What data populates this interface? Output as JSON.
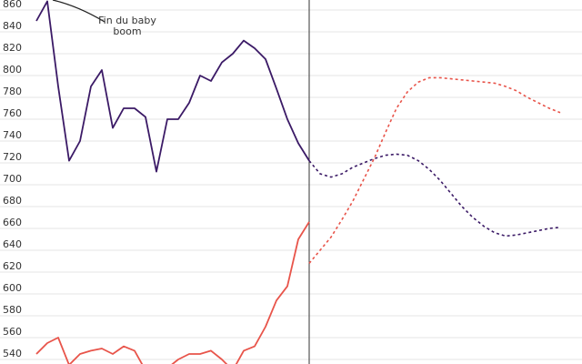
{
  "chart_data": {
    "type": "line",
    "annotation": [
      "Fin du baby",
      "boom"
    ],
    "categories": [
      null,
      null,
      null,
      null,
      null,
      null,
      null,
      null,
      null,
      null,
      null,
      null,
      null,
      null,
      null,
      null,
      null,
      null,
      null,
      null,
      null,
      null,
      null,
      null,
      null,
      null,
      null,
      null,
      null,
      null,
      null,
      null,
      null,
      null,
      null,
      null,
      null,
      null,
      null,
      null,
      null,
      null,
      null,
      null,
      null,
      null,
      null,
      null,
      null
    ],
    "series": [
      {
        "color": "#3b1a66",
        "dashed": false,
        "values": [
          850,
          868,
          790,
          722,
          740,
          790,
          805,
          752,
          770,
          770,
          762,
          712,
          760,
          760,
          775,
          800,
          795,
          812,
          820,
          832,
          825,
          815,
          788,
          760,
          738,
          722,
          null,
          null,
          null,
          null,
          null,
          null,
          null,
          null,
          null,
          null,
          null,
          null,
          null,
          null,
          null,
          null,
          null,
          null,
          null,
          null,
          null,
          null,
          null
        ]
      },
      {
        "color": "#3b1a66",
        "dashed": true,
        "values": [
          null,
          null,
          null,
          null,
          null,
          null,
          null,
          null,
          null,
          null,
          null,
          null,
          null,
          null,
          null,
          null,
          null,
          null,
          null,
          null,
          null,
          null,
          null,
          null,
          null,
          722,
          710,
          707,
          710,
          716,
          720,
          724,
          727,
          728,
          727,
          722,
          714,
          704,
          692,
          680,
          670,
          662,
          656,
          653,
          654,
          656,
          658,
          660,
          661
        ]
      },
      {
        "color": "#e8544a",
        "dashed": false,
        "values": [
          545,
          555,
          560,
          535,
          545,
          548,
          550,
          545,
          552,
          548,
          530,
          528,
          532,
          540,
          545,
          545,
          548,
          540,
          530,
          548,
          552,
          570,
          594,
          607,
          650,
          666,
          null,
          null,
          null,
          null,
          null,
          null,
          null,
          null,
          null,
          null,
          null,
          null,
          null,
          null,
          null,
          null,
          null,
          null,
          null,
          null,
          null,
          null,
          null
        ]
      },
      {
        "color": "#e8544a",
        "dashed": true,
        "values": [
          null,
          null,
          null,
          null,
          null,
          null,
          null,
          null,
          null,
          null,
          null,
          null,
          null,
          null,
          null,
          null,
          null,
          null,
          null,
          null,
          null,
          null,
          null,
          null,
          null,
          628,
          640,
          652,
          668,
          685,
          705,
          725,
          748,
          770,
          785,
          794,
          798,
          798,
          797,
          796,
          795,
          794,
          793,
          790,
          786,
          780,
          775,
          770,
          766
        ]
      }
    ],
    "ylim": [
      540,
      860
    ],
    "yticks": [
      540,
      560,
      580,
      600,
      620,
      640,
      660,
      680,
      700,
      720,
      740,
      760,
      780,
      800,
      820,
      840,
      860
    ],
    "grid": true
  }
}
